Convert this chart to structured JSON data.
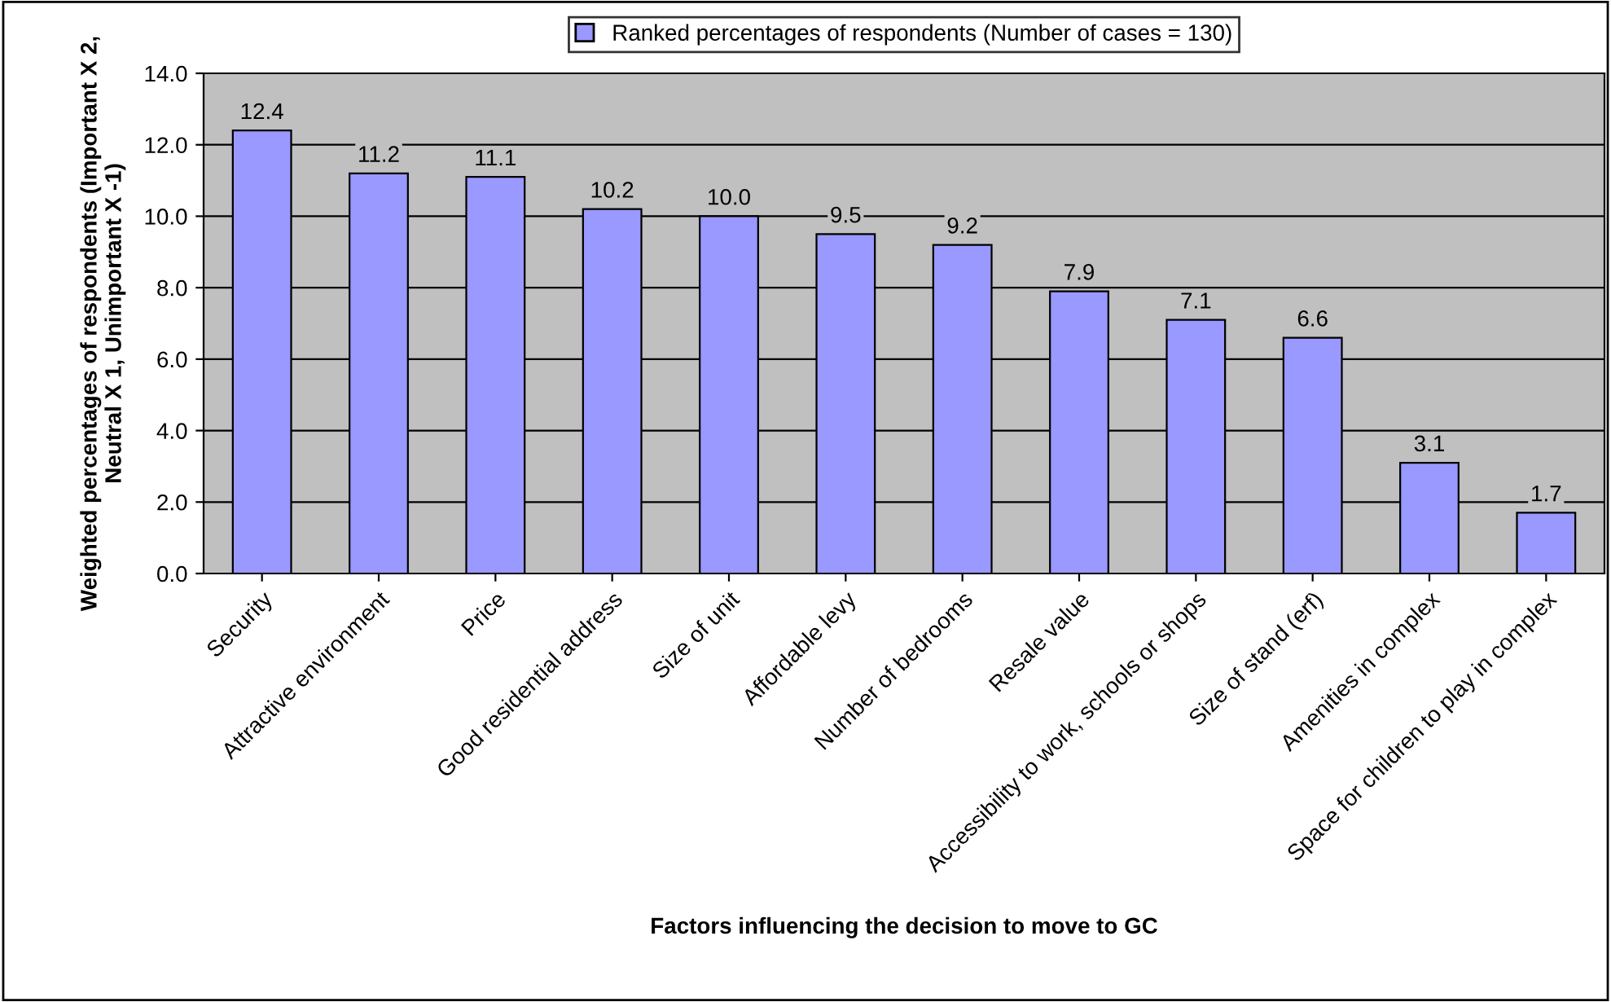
{
  "chart_data": {
    "type": "bar",
    "categories": [
      "Security",
      "Attractive environment",
      "Price",
      "Good residential address",
      "Size of unit",
      "Affordable levy",
      "Number of bedrooms",
      "Resale value",
      "Accessibility to work, schools or shops",
      "Size of stand (erf)",
      "Amenities in complex",
      "Space for children to play in complex"
    ],
    "series": [
      {
        "name": "Ranked percentages of respondents (Number of cases = 130)",
        "color": "#9999ff",
        "values": [
          12.4,
          11.2,
          11.1,
          10.2,
          10.0,
          9.5,
          9.2,
          7.9,
          7.1,
          6.6,
          3.1,
          1.7
        ],
        "value_labels": [
          "12.4",
          "11.2",
          "11.1",
          "10.2",
          "10.0",
          "9.5",
          "9.2",
          "7.9",
          "7.1",
          "6.6",
          "3.1",
          "1.7"
        ]
      }
    ],
    "xlabel": "Factors influencing the decision to move to GC",
    "ylabel": "Weighted percentages of respondents (Important X 2,\nNeutral X 1, Unimportant X -1)",
    "ylim": [
      0,
      14
    ],
    "yticks": [
      {
        "value": 0,
        "label": "0.0"
      },
      {
        "value": 2,
        "label": "2.0"
      },
      {
        "value": 4,
        "label": "4.0"
      },
      {
        "value": 6,
        "label": "6.0"
      },
      {
        "value": 8,
        "label": "8.0"
      },
      {
        "value": 10,
        "label": "10.0"
      },
      {
        "value": 12,
        "label": "12.0"
      },
      {
        "value": 14,
        "label": "14.0"
      }
    ],
    "grid": "y",
    "legend": "top"
  }
}
